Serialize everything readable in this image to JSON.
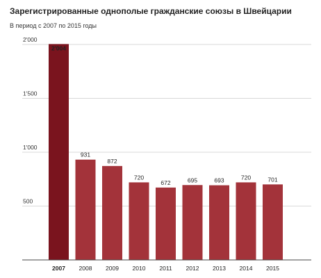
{
  "chart_data": {
    "type": "bar",
    "title": "Зарегистрированные однополые гражданские союзы в Швейцарии",
    "subtitle": "В период с 2007 по 2015 годы",
    "categories": [
      "2007",
      "2008",
      "2009",
      "2010",
      "2011",
      "2012",
      "2013",
      "2014",
      "2015"
    ],
    "values": [
      2004,
      931,
      872,
      720,
      672,
      695,
      693,
      720,
      701
    ],
    "value_labels": [
      "2'004",
      "931",
      "872",
      "720",
      "672",
      "695",
      "693",
      "720",
      "701"
    ],
    "ylim": [
      0,
      2000
    ],
    "yticks": [
      500,
      1000,
      1500,
      2000
    ],
    "ytick_labels": [
      "500",
      "1'000",
      "1'500",
      "2'000"
    ],
    "grid": true,
    "highlight_index": 0,
    "colors": {
      "bar": "#a3333a",
      "highlight": "#7a141e",
      "grid": "#d8d8d8",
      "axis": "#444444"
    }
  }
}
